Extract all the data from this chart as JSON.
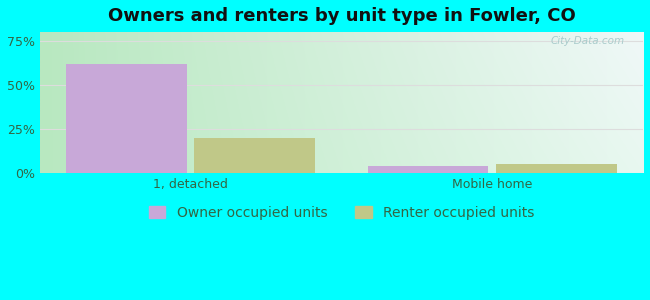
{
  "title": "Owners and renters by unit type in Fowler, CO",
  "categories": [
    "1, detached",
    "Mobile home"
  ],
  "owner_values": [
    62,
    4
  ],
  "renter_values": [
    20,
    5
  ],
  "owner_color": "#c8a8d8",
  "renter_color": "#c0c888",
  "yticks": [
    0,
    25,
    50,
    75
  ],
  "ytick_labels": [
    "0%",
    "25%",
    "50%",
    "75%"
  ],
  "ylim": [
    0,
    80
  ],
  "bar_width": 0.32,
  "bg_left": "#b8e8c0",
  "bg_right": "#e8f8f0",
  "bg_top_right": "#f0f8f8",
  "outer_bg": "#00ffff",
  "title_fontsize": 13,
  "tick_fontsize": 9,
  "legend_fontsize": 10,
  "owner_label": "Owner occupied units",
  "renter_label": "Renter occupied units",
  "watermark": "City-Data.com",
  "grid_color": "#dddddd",
  "tick_color": "#336644",
  "x_positions": [
    0.3,
    1.1
  ],
  "xlim": [
    -0.1,
    1.5
  ]
}
